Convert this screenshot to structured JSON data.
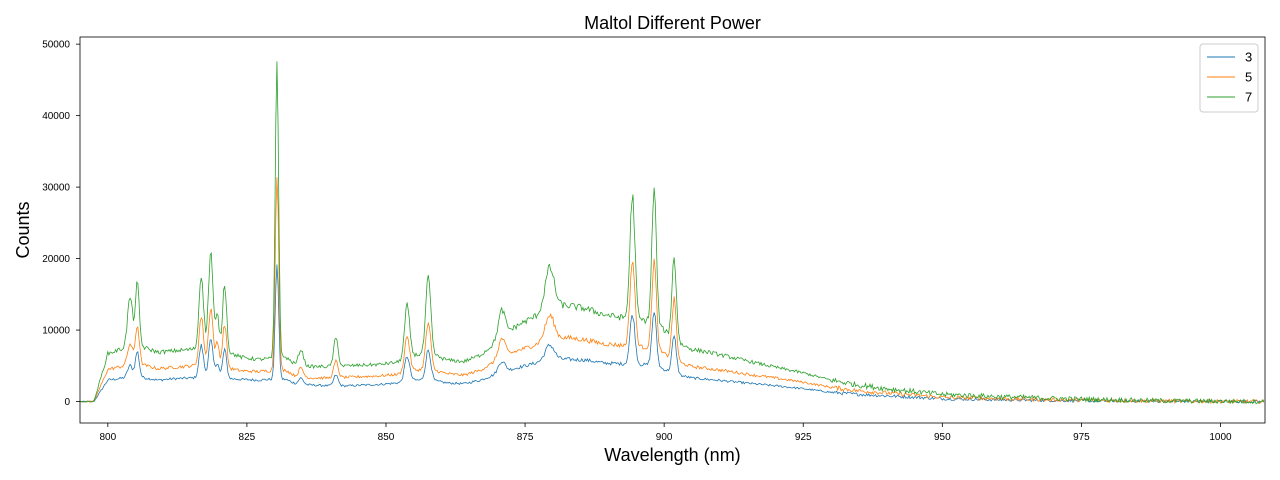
{
  "chart_data": {
    "type": "line",
    "title": "Maltol Different Power",
    "xlabel": "Wavelength (nm)",
    "ylabel": "Counts",
    "xlim": [
      795,
      1008
    ],
    "ylim": [
      -3000,
      51000
    ],
    "xticks": [
      800,
      825,
      850,
      875,
      900,
      925,
      950,
      975,
      1000
    ],
    "yticks": [
      0,
      10000,
      20000,
      30000,
      40000,
      50000
    ],
    "grid": false,
    "legend_position": "top-right",
    "series": [
      {
        "name": "3",
        "color": "#1f77b4",
        "baseline": [
          [
            795,
            0
          ],
          [
            797.5,
            0
          ],
          [
            800,
            3000
          ],
          [
            803,
            3300
          ],
          [
            806,
            3400
          ],
          [
            809,
            3000
          ],
          [
            812,
            3200
          ],
          [
            815,
            3300
          ],
          [
            820,
            3400
          ],
          [
            822,
            3200
          ],
          [
            824,
            3100
          ],
          [
            827,
            3000
          ],
          [
            829,
            3100
          ],
          [
            832,
            3100
          ],
          [
            834,
            2400
          ],
          [
            837,
            2300
          ],
          [
            840,
            2200
          ],
          [
            843,
            2200
          ],
          [
            846,
            2300
          ],
          [
            849,
            2400
          ],
          [
            852,
            2600
          ],
          [
            855,
            3000
          ],
          [
            858,
            3000
          ],
          [
            861,
            2600
          ],
          [
            864,
            2500
          ],
          [
            867,
            3000
          ],
          [
            869,
            3600
          ],
          [
            871,
            4200
          ],
          [
            874,
            4800
          ],
          [
            877,
            5400
          ],
          [
            880,
            6000
          ],
          [
            883,
            5900
          ],
          [
            886,
            5800
          ],
          [
            889,
            5400
          ],
          [
            892,
            5300
          ],
          [
            895,
            5200
          ],
          [
            898,
            5100
          ],
          [
            900,
            4500
          ],
          [
            902,
            3800
          ],
          [
            905,
            3300
          ],
          [
            908,
            3100
          ],
          [
            912,
            2800
          ],
          [
            916,
            2500
          ],
          [
            920,
            2200
          ],
          [
            925,
            1800
          ],
          [
            930,
            1300
          ],
          [
            935,
            1000
          ],
          [
            940,
            800
          ],
          [
            945,
            600
          ],
          [
            950,
            400
          ],
          [
            960,
            250
          ],
          [
            970,
            150
          ],
          [
            980,
            80
          ],
          [
            990,
            40
          ],
          [
            1000,
            10
          ],
          [
            1008,
            0
          ]
        ],
        "peaks": [
          [
            804,
            1700,
            0.45
          ],
          [
            805.3,
            3600,
            0.35
          ],
          [
            816.8,
            4500,
            0.4
          ],
          [
            818.5,
            5200,
            0.4
          ],
          [
            819.7,
            2000,
            0.3
          ],
          [
            821,
            4000,
            0.35
          ],
          [
            830.4,
            16400,
            0.3
          ],
          [
            834.7,
            900,
            0.45
          ],
          [
            841,
            1500,
            0.4
          ],
          [
            853.8,
            3500,
            0.45
          ],
          [
            857.6,
            4200,
            0.45
          ],
          [
            870.8,
            1500,
            0.6
          ],
          [
            879.4,
            2000,
            0.8
          ],
          [
            894.3,
            7000,
            0.45
          ],
          [
            898.2,
            7600,
            0.4
          ],
          [
            901.8,
            5200,
            0.4
          ]
        ]
      },
      {
        "name": "5",
        "color": "#ff7f0e",
        "baseline": [
          [
            795,
            0
          ],
          [
            797.5,
            0
          ],
          [
            800,
            4500
          ],
          [
            803,
            5000
          ],
          [
            806,
            5200
          ],
          [
            809,
            4600
          ],
          [
            812,
            4800
          ],
          [
            815,
            5000
          ],
          [
            820,
            5200
          ],
          [
            822,
            4600
          ],
          [
            824,
            4300
          ],
          [
            827,
            4200
          ],
          [
            829,
            4300
          ],
          [
            832,
            4400
          ],
          [
            834,
            3400
          ],
          [
            837,
            3300
          ],
          [
            840,
            3300
          ],
          [
            843,
            3400
          ],
          [
            846,
            3500
          ],
          [
            849,
            3600
          ],
          [
            852,
            3800
          ],
          [
            855,
            4400
          ],
          [
            858,
            4500
          ],
          [
            861,
            3900
          ],
          [
            864,
            3700
          ],
          [
            867,
            4400
          ],
          [
            869,
            5300
          ],
          [
            871,
            6400
          ],
          [
            874,
            7200
          ],
          [
            877,
            8000
          ],
          [
            880,
            9000
          ],
          [
            883,
            8900
          ],
          [
            886,
            8600
          ],
          [
            889,
            8100
          ],
          [
            892,
            7900
          ],
          [
            895,
            7700
          ],
          [
            898,
            7500
          ],
          [
            900,
            6700
          ],
          [
            902,
            5600
          ],
          [
            905,
            4900
          ],
          [
            908,
            4600
          ],
          [
            912,
            4200
          ],
          [
            916,
            3700
          ],
          [
            920,
            3300
          ],
          [
            925,
            2700
          ],
          [
            930,
            2000
          ],
          [
            935,
            1500
          ],
          [
            940,
            1200
          ],
          [
            945,
            900
          ],
          [
            950,
            600
          ],
          [
            960,
            400
          ],
          [
            970,
            250
          ],
          [
            980,
            150
          ],
          [
            990,
            80
          ],
          [
            1000,
            30
          ],
          [
            1008,
            0
          ]
        ],
        "peaks": [
          [
            804,
            3000,
            0.45
          ],
          [
            805.3,
            5500,
            0.35
          ],
          [
            816.8,
            6800,
            0.4
          ],
          [
            818.5,
            8000,
            0.4
          ],
          [
            819.7,
            3000,
            0.3
          ],
          [
            821,
            6000,
            0.35
          ],
          [
            830.4,
            28000,
            0.3
          ],
          [
            834.7,
            1300,
            0.45
          ],
          [
            841,
            2300,
            0.4
          ],
          [
            853.8,
            5000,
            0.45
          ],
          [
            857.6,
            6500,
            0.45
          ],
          [
            870.8,
            2500,
            0.6
          ],
          [
            879.4,
            3200,
            0.8
          ],
          [
            894.3,
            12000,
            0.45
          ],
          [
            898.2,
            12300,
            0.4
          ],
          [
            901.8,
            8500,
            0.4
          ]
        ]
      },
      {
        "name": "7",
        "color": "#2ca02c",
        "baseline": [
          [
            795,
            0
          ],
          [
            797.5,
            0
          ],
          [
            800,
            6700
          ],
          [
            803,
            7500
          ],
          [
            806,
            7700
          ],
          [
            809,
            6900
          ],
          [
            812,
            7100
          ],
          [
            815,
            7300
          ],
          [
            820,
            7500
          ],
          [
            822,
            6800
          ],
          [
            824,
            6200
          ],
          [
            827,
            5900
          ],
          [
            829,
            6000
          ],
          [
            832,
            6200
          ],
          [
            834,
            5000
          ],
          [
            837,
            4900
          ],
          [
            840,
            4900
          ],
          [
            843,
            5000
          ],
          [
            846,
            5100
          ],
          [
            849,
            5200
          ],
          [
            852,
            5500
          ],
          [
            855,
            6500
          ],
          [
            858,
            6700
          ],
          [
            861,
            5800
          ],
          [
            864,
            5600
          ],
          [
            867,
            6500
          ],
          [
            869,
            7800
          ],
          [
            871,
            9400
          ],
          [
            874,
            10800
          ],
          [
            877,
            12000
          ],
          [
            880,
            13500
          ],
          [
            883,
            13400
          ],
          [
            886,
            13000
          ],
          [
            889,
            12200
          ],
          [
            892,
            11800
          ],
          [
            895,
            11500
          ],
          [
            898,
            11200
          ],
          [
            900,
            10000
          ],
          [
            902,
            8400
          ],
          [
            905,
            7300
          ],
          [
            908,
            6900
          ],
          [
            912,
            6200
          ],
          [
            916,
            5500
          ],
          [
            920,
            4800
          ],
          [
            925,
            4000
          ],
          [
            930,
            3000
          ],
          [
            935,
            2300
          ],
          [
            940,
            1800
          ],
          [
            945,
            1400
          ],
          [
            950,
            1000
          ],
          [
            960,
            700
          ],
          [
            970,
            450
          ],
          [
            980,
            250
          ],
          [
            990,
            120
          ],
          [
            1000,
            40
          ],
          [
            1008,
            0
          ]
        ],
        "peaks": [
          [
            804,
            7000,
            0.45
          ],
          [
            805.3,
            8700,
            0.35
          ],
          [
            816.8,
            10500,
            0.4
          ],
          [
            818.5,
            13500,
            0.4
          ],
          [
            819.7,
            4500,
            0.3
          ],
          [
            821,
            9500,
            0.35
          ],
          [
            830.4,
            41500,
            0.3
          ],
          [
            834.7,
            2300,
            0.45
          ],
          [
            841,
            3900,
            0.4
          ],
          [
            853.8,
            7300,
            0.45
          ],
          [
            857.6,
            10600,
            0.45
          ],
          [
            870.8,
            3500,
            0.6
          ],
          [
            879.4,
            5500,
            0.8
          ],
          [
            894.3,
            17200,
            0.45
          ],
          [
            898.2,
            18500,
            0.4
          ],
          [
            901.8,
            11500,
            0.4
          ]
        ]
      }
    ]
  }
}
